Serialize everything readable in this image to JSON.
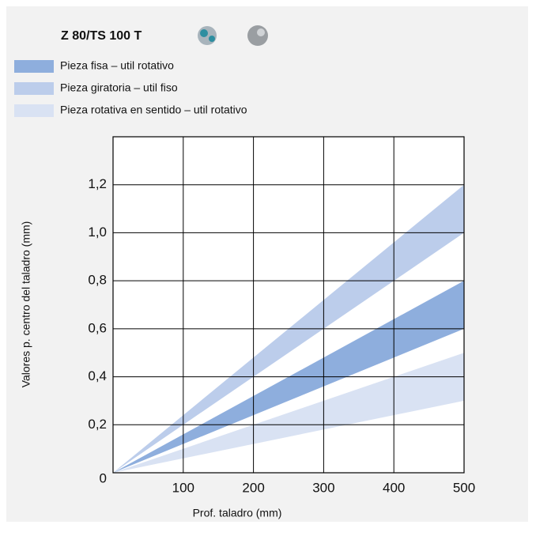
{
  "chart_data": {
    "type": "band",
    "title": "Z 80/TS 100 T",
    "x_label": "Prof. taladro (mm)",
    "y_label": "Valores p. centro del taladro (mm)",
    "x": [
      0,
      500
    ],
    "series": [
      {
        "name": "Pieza fisa – util rotativo",
        "color": "#8eaedd",
        "lower": [
          0,
          0.6
        ],
        "upper": [
          0,
          0.8
        ]
      },
      {
        "name": "Pieza giratoria – util fiso",
        "color": "#bccdeb",
        "lower": [
          0,
          1.0
        ],
        "upper": [
          0,
          1.2
        ]
      },
      {
        "name": "Pieza rotativa en sentido – util rotativo",
        "color": "#d9e2f3",
        "lower": [
          0,
          0.3
        ],
        "upper": [
          0,
          0.5
        ]
      }
    ],
    "xlim": [
      0,
      500
    ],
    "xticks": [
      100,
      200,
      300,
      400,
      500
    ],
    "ylim": [
      0,
      1.4
    ],
    "yticks": [
      0,
      {
        "value": 0.2,
        "label": "0,2"
      },
      {
        "value": 0.4,
        "label": "0,4"
      },
      {
        "value": 0.6,
        "label": "0,6"
      },
      {
        "value": 0.8,
        "label": "0,8"
      },
      {
        "value": 1.0,
        "label": "1,0"
      },
      {
        "value": 1.2,
        "label": "1,2"
      }
    ],
    "grid": true
  }
}
